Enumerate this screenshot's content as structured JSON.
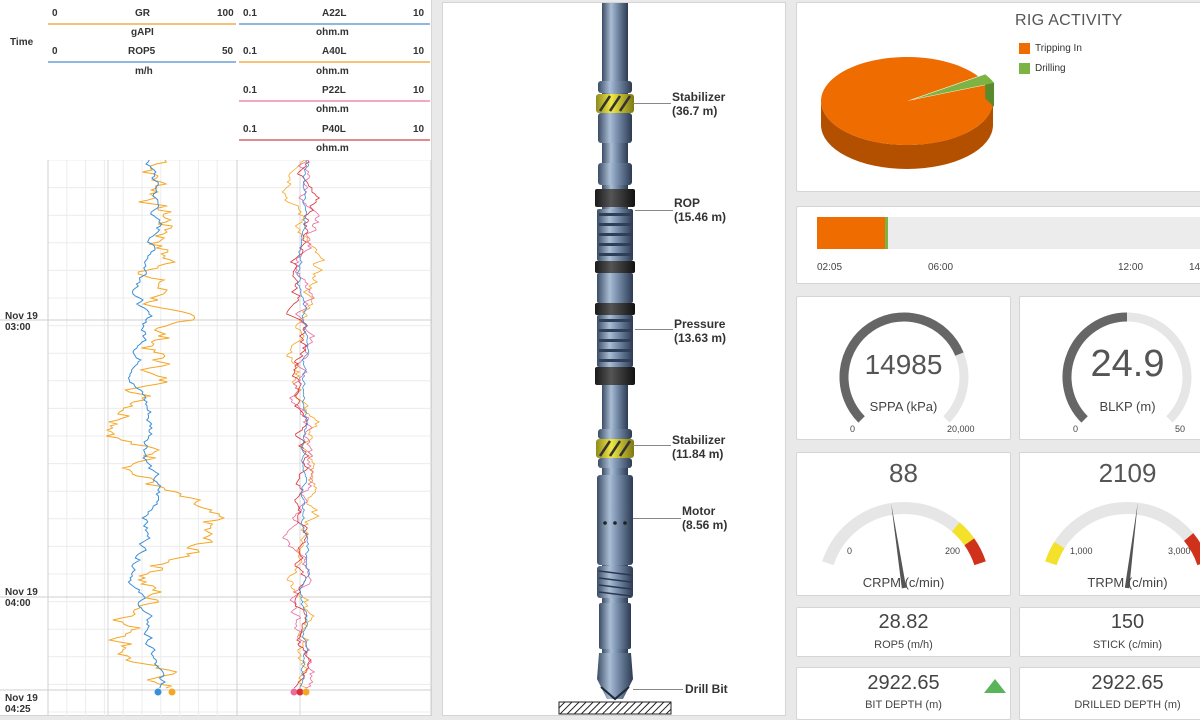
{
  "log": {
    "time_header": "Time",
    "tracks": [
      {
        "label": "GR",
        "unit": "gAPI",
        "min": "0",
        "max": "100",
        "color": "#f5a623"
      },
      {
        "label": "ROP5",
        "unit": "m/h",
        "min": "0",
        "max": "50",
        "color": "#3b8fd9"
      },
      {
        "label": "A22L",
        "unit": "ohm.m",
        "min": "0.1",
        "max": "10",
        "color": "#3b8fd9"
      },
      {
        "label": "A40L",
        "unit": "ohm.m",
        "min": "0.1",
        "max": "10",
        "color": "#f5a623"
      },
      {
        "label": "P22L",
        "unit": "ohm.m",
        "min": "0.1",
        "max": "10",
        "color": "#e86ea0"
      },
      {
        "label": "P40L",
        "unit": "ohm.m",
        "min": "0.1",
        "max": "10",
        "color": "#d9323a"
      }
    ],
    "times": [
      {
        "date": "Nov 19",
        "time": "03:00"
      },
      {
        "date": "Nov 19",
        "time": "04:00"
      },
      {
        "date": "Nov 19",
        "time": "04:25"
      }
    ]
  },
  "bha": {
    "components": [
      {
        "name": "Stabilizer",
        "depth": "(36.7 m)"
      },
      {
        "name": "ROP",
        "depth": "(15.46 m)"
      },
      {
        "name": "Pressure",
        "depth": "(13.63 m)"
      },
      {
        "name": "Stabilizer",
        "depth": "(11.84 m)"
      },
      {
        "name": "Motor",
        "depth": "(8.56 m)"
      },
      {
        "name": "Drill Bit",
        "depth": ""
      }
    ]
  },
  "rig_activity": {
    "title": "RIG ACTIVITY",
    "legend": [
      {
        "label": "Tripping In",
        "color": "#ef6c00"
      },
      {
        "label": "Drilling",
        "color": "#7cb342"
      }
    ],
    "shares": [
      0.965,
      0.035
    ],
    "timeline_ticks": [
      "02:05",
      "06:00",
      "12:00",
      "14"
    ],
    "timeline_tripping_fraction": 0.175,
    "timeline_drilling_fraction": 0.007
  },
  "gauges": {
    "sppa": {
      "value": "14985",
      "label": "SPPA (kPa)",
      "min": "0",
      "max": "20,000",
      "fraction": 0.75
    },
    "blkp": {
      "value": "24.9",
      "label": "BLKP (m)",
      "min": "0",
      "max": "50",
      "fraction": 0.5
    },
    "crpm": {
      "value": "88",
      "label": "CRPM (c/min)",
      "min": "0",
      "max": "200",
      "needle_fraction": 0.44
    },
    "trpm": {
      "value": "2109",
      "label": "TRPM (c/min)",
      "min": "1,000",
      "max": "3,000",
      "needle_fraction": 0.55
    }
  },
  "readouts": {
    "rop5": {
      "value": "28.82",
      "label": "ROP5 (m/h)"
    },
    "stick": {
      "value": "150",
      "label": "STICK (c/min)"
    },
    "bit_depth": {
      "value": "2922.65",
      "label": "BIT DEPTH (m)"
    },
    "drilled_depth": {
      "value": "2922.65",
      "label": "DRILLED DEPTH (m)"
    }
  },
  "colors": {
    "gauge_dark": "#666666",
    "gauge_light": "#e6e6e6",
    "yellow": "#f3e12a",
    "red": "#d0311b",
    "up_arrow": "#5ab45a"
  }
}
